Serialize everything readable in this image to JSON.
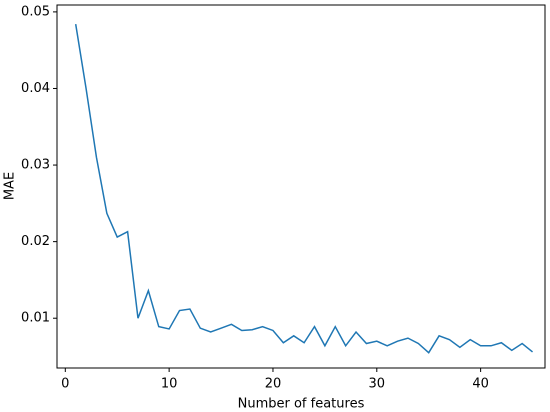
{
  "chart_data": {
    "type": "line",
    "x_label": "Number of features",
    "y_label": "MAE",
    "x": [
      1,
      2,
      3,
      4,
      5,
      6,
      7,
      8,
      9,
      10,
      11,
      12,
      13,
      14,
      15,
      16,
      17,
      18,
      19,
      20,
      21,
      22,
      23,
      24,
      25,
      26,
      27,
      28,
      29,
      30,
      31,
      32,
      33,
      34,
      35,
      36,
      37,
      38,
      39,
      40,
      41,
      42,
      43,
      44,
      45
    ],
    "series": [
      {
        "color": "#1f77b4",
        "values": [
          0.0484,
          0.04,
          0.031,
          0.0237,
          0.0206,
          0.0213,
          0.01,
          0.0136,
          0.0089,
          0.0086,
          0.011,
          0.0112,
          0.0087,
          0.0082,
          0.0087,
          0.0092,
          0.0084,
          0.0085,
          0.0089,
          0.0084,
          0.0068,
          0.0077,
          0.0068,
          0.0089,
          0.0064,
          0.0089,
          0.0064,
          0.0082,
          0.0067,
          0.007,
          0.0064,
          0.007,
          0.0074,
          0.0067,
          0.0055,
          0.0077,
          0.0072,
          0.0062,
          0.0072,
          0.0064,
          0.0064,
          0.0068,
          0.0058,
          0.0067,
          0.0056
        ]
      }
    ],
    "xlim": [
      -0.8,
      46.2
    ],
    "ylim": [
      0.0035,
      0.0509
    ],
    "xticks": [
      0,
      10,
      20,
      30,
      40
    ],
    "yticks": [
      0.01,
      0.02,
      0.03,
      0.04,
      0.05
    ],
    "grid": false
  }
}
